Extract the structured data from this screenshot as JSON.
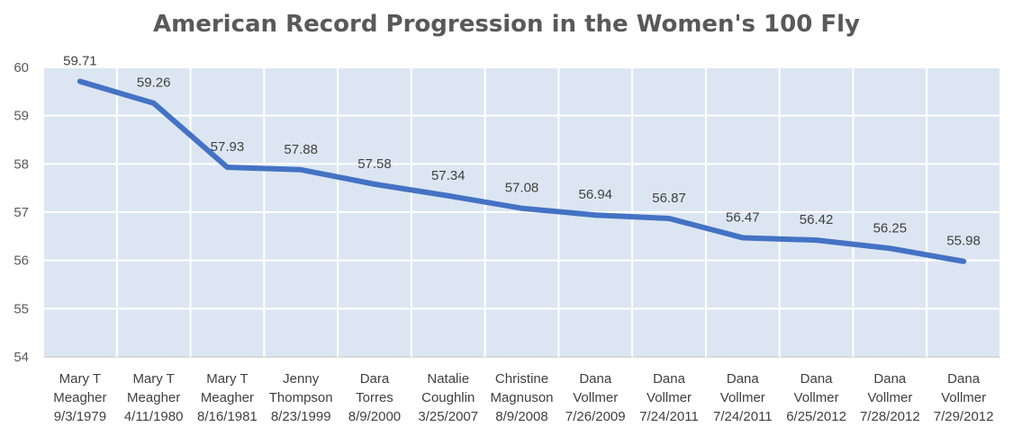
{
  "chart_data": {
    "type": "line",
    "title": "American Record Progression in the Women's 100 Fly",
    "xlabel": "",
    "ylabel": "",
    "ylim": [
      54,
      60
    ],
    "yticks": [
      54,
      55,
      56,
      57,
      58,
      59,
      60
    ],
    "grid": true,
    "legend": "none",
    "colors": {
      "line": "#4472c4",
      "plot_background": "#dce6f2",
      "grid": "#ffffff"
    },
    "categories": [
      [
        "Mary T",
        "Meagher",
        "9/3/1979"
      ],
      [
        "Mary T",
        "Meagher",
        "4/11/1980"
      ],
      [
        "Mary T",
        "Meagher",
        "8/16/1981"
      ],
      [
        "Jenny",
        "Thompson",
        "8/23/1999"
      ],
      [
        "Dara",
        "Torres",
        "8/9/2000"
      ],
      [
        "Natalie",
        "Coughlin",
        "3/25/2007"
      ],
      [
        "Christine",
        "Magnuson",
        "8/9/2008"
      ],
      [
        "Dana",
        "Vollmer",
        "7/26/2009"
      ],
      [
        "Dana",
        "Vollmer",
        "7/24/2011"
      ],
      [
        "Dana",
        "Vollmer",
        "7/24/2011"
      ],
      [
        "Dana",
        "Vollmer",
        "6/25/2012"
      ],
      [
        "Dana",
        "Vollmer",
        "7/28/2012"
      ],
      [
        "Dana",
        "Vollmer",
        "7/29/2012"
      ]
    ],
    "series": [
      {
        "values": [
          59.71,
          59.26,
          57.93,
          57.88,
          57.58,
          57.34,
          57.08,
          56.94,
          56.87,
          56.47,
          56.42,
          56.25,
          55.98
        ],
        "data_labels": [
          "59.71",
          "59.26",
          "57.93",
          "57.88",
          "57.58",
          "57.34",
          "57.08",
          "56.94",
          "56.87",
          "56.47",
          "56.42",
          "56.25",
          "55.98"
        ]
      }
    ]
  }
}
